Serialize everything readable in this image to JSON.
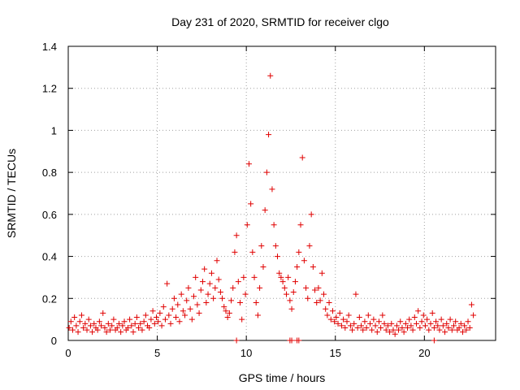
{
  "chart_data": {
    "type": "scatter",
    "title": "Day 231 of 2020, SRMTID for receiver clgo",
    "xlabel": "GPS time / hours",
    "ylabel": "SRMTID / TECUs",
    "xlim": [
      0,
      24
    ],
    "ylim": [
      0,
      1.4
    ],
    "xticks": [
      0,
      5,
      10,
      15,
      20
    ],
    "xtick_labels": [
      "0",
      "5",
      "10",
      "15",
      "20"
    ],
    "yticks": [
      0,
      0.2,
      0.4,
      0.6,
      0.8,
      1.0,
      1.2,
      1.4
    ],
    "ytick_labels": [
      "0",
      "0.2",
      "0.4",
      "0.6",
      "0.8",
      "1",
      "1.2",
      "1.4"
    ],
    "grid": true,
    "marker": "+",
    "color": "#e00000",
    "series": [
      {
        "name": "SRMTID",
        "points": [
          [
            0.05,
            0.06
          ],
          [
            0.15,
            0.09
          ],
          [
            0.25,
            0.05
          ],
          [
            0.35,
            0.11
          ],
          [
            0.45,
            0.07
          ],
          [
            0.55,
            0.04
          ],
          [
            0.65,
            0.09
          ],
          [
            0.75,
            0.12
          ],
          [
            0.85,
            0.06
          ],
          [
            0.95,
            0.08
          ],
          [
            1.05,
            0.05
          ],
          [
            1.15,
            0.1
          ],
          [
            1.25,
            0.07
          ],
          [
            1.35,
            0.04
          ],
          [
            1.45,
            0.08
          ],
          [
            1.55,
            0.06
          ],
          [
            1.65,
            0.05
          ],
          [
            1.75,
            0.09
          ],
          [
            1.85,
            0.07
          ],
          [
            1.95,
            0.13
          ],
          [
            2.05,
            0.06
          ],
          [
            2.15,
            0.04
          ],
          [
            2.25,
            0.08
          ],
          [
            2.35,
            0.05
          ],
          [
            2.45,
            0.07
          ],
          [
            2.55,
            0.1
          ],
          [
            2.65,
            0.05
          ],
          [
            2.75,
            0.06
          ],
          [
            2.85,
            0.08
          ],
          [
            2.95,
            0.04
          ],
          [
            3.05,
            0.07
          ],
          [
            3.15,
            0.09
          ],
          [
            3.25,
            0.05
          ],
          [
            3.35,
            0.06
          ],
          [
            3.45,
            0.1
          ],
          [
            3.55,
            0.07
          ],
          [
            3.65,
            0.04
          ],
          [
            3.75,
            0.08
          ],
          [
            3.85,
            0.11
          ],
          [
            3.95,
            0.06
          ],
          [
            4.05,
            0.08
          ],
          [
            4.15,
            0.05
          ],
          [
            4.25,
            0.09
          ],
          [
            4.35,
            0.12
          ],
          [
            4.45,
            0.07
          ],
          [
            4.55,
            0.06
          ],
          [
            4.65,
            0.1
          ],
          [
            4.75,
            0.14
          ],
          [
            4.85,
            0.08
          ],
          [
            4.95,
            0.11
          ],
          [
            5.05,
            0.09
          ],
          [
            5.15,
            0.13
          ],
          [
            5.25,
            0.07
          ],
          [
            5.35,
            0.16
          ],
          [
            5.45,
            0.1
          ],
          [
            5.55,
            0.27
          ],
          [
            5.65,
            0.12
          ],
          [
            5.75,
            0.08
          ],
          [
            5.85,
            0.15
          ],
          [
            5.95,
            0.2
          ],
          [
            6.05,
            0.11
          ],
          [
            6.15,
            0.17
          ],
          [
            6.25,
            0.09
          ],
          [
            6.35,
            0.22
          ],
          [
            6.45,
            0.14
          ],
          [
            6.55,
            0.12
          ],
          [
            6.65,
            0.19
          ],
          [
            6.75,
            0.25
          ],
          [
            6.85,
            0.15
          ],
          [
            6.95,
            0.1
          ],
          [
            7.05,
            0.21
          ],
          [
            7.15,
            0.3
          ],
          [
            7.25,
            0.17
          ],
          [
            7.35,
            0.13
          ],
          [
            7.45,
            0.24
          ],
          [
            7.55,
            0.28
          ],
          [
            7.65,
            0.34
          ],
          [
            7.75,
            0.18
          ],
          [
            7.85,
            0.22
          ],
          [
            7.95,
            0.27
          ],
          [
            8.05,
            0.32
          ],
          [
            8.15,
            0.2
          ],
          [
            8.25,
            0.25
          ],
          [
            8.35,
            0.38
          ],
          [
            8.45,
            0.29
          ],
          [
            8.55,
            0.23
          ],
          [
            8.65,
            0.2
          ],
          [
            8.75,
            0.16
          ],
          [
            8.85,
            0.14
          ],
          [
            8.95,
            0.11
          ],
          [
            9.05,
            0.13
          ],
          [
            9.15,
            0.19
          ],
          [
            9.25,
            0.25
          ],
          [
            9.35,
            0.42
          ],
          [
            9.45,
            0.5
          ],
          [
            9.55,
            0.28
          ],
          [
            9.65,
            0.18
          ],
          [
            9.75,
            0.1
          ],
          [
            9.85,
            0.3
          ],
          [
            9.95,
            0.22
          ],
          [
            10.05,
            0.55
          ],
          [
            10.15,
            0.84
          ],
          [
            10.25,
            0.65
          ],
          [
            10.35,
            0.42
          ],
          [
            10.45,
            0.3
          ],
          [
            10.55,
            0.18
          ],
          [
            10.65,
            0.12
          ],
          [
            10.75,
            0.25
          ],
          [
            10.85,
            0.45
          ],
          [
            10.95,
            0.35
          ],
          [
            11.05,
            0.62
          ],
          [
            11.15,
            0.8
          ],
          [
            11.25,
            0.98
          ],
          [
            11.35,
            1.26
          ],
          [
            11.45,
            0.72
          ],
          [
            11.55,
            0.55
          ],
          [
            11.65,
            0.45
          ],
          [
            11.75,
            0.4
          ],
          [
            11.85,
            0.32
          ],
          [
            11.95,
            0.3
          ],
          [
            12.05,
            0.28
          ],
          [
            12.15,
            0.25
          ],
          [
            12.25,
            0.22
          ],
          [
            12.35,
            0.3
          ],
          [
            12.45,
            0.19
          ],
          [
            12.55,
            0.15
          ],
          [
            12.65,
            0.23
          ],
          [
            12.75,
            0.28
          ],
          [
            12.85,
            0.35
          ],
          [
            12.95,
            0.42
          ],
          [
            13.05,
            0.55
          ],
          [
            13.15,
            0.87
          ],
          [
            13.25,
            0.38
          ],
          [
            13.35,
            0.25
          ],
          [
            13.45,
            0.2
          ],
          [
            13.55,
            0.45
          ],
          [
            13.65,
            0.6
          ],
          [
            13.75,
            0.35
          ],
          [
            13.85,
            0.24
          ],
          [
            13.95,
            0.18
          ],
          [
            14.05,
            0.25
          ],
          [
            14.15,
            0.19
          ],
          [
            14.25,
            0.32
          ],
          [
            14.35,
            0.22
          ],
          [
            14.45,
            0.15
          ],
          [
            14.55,
            0.12
          ],
          [
            14.65,
            0.18
          ],
          [
            14.75,
            0.1
          ],
          [
            14.85,
            0.14
          ],
          [
            14.95,
            0.09
          ],
          [
            15.05,
            0.11
          ],
          [
            15.15,
            0.08
          ],
          [
            15.25,
            0.13
          ],
          [
            15.35,
            0.07
          ],
          [
            15.45,
            0.1
          ],
          [
            15.55,
            0.06
          ],
          [
            15.65,
            0.09
          ],
          [
            15.75,
            0.12
          ],
          [
            15.85,
            0.07
          ],
          [
            15.95,
            0.05
          ],
          [
            16.05,
            0.08
          ],
          [
            16.15,
            0.22
          ],
          [
            16.25,
            0.06
          ],
          [
            16.35,
            0.11
          ],
          [
            16.45,
            0.07
          ],
          [
            16.55,
            0.05
          ],
          [
            16.65,
            0.09
          ],
          [
            16.75,
            0.06
          ],
          [
            16.85,
            0.12
          ],
          [
            16.95,
            0.08
          ],
          [
            17.05,
            0.05
          ],
          [
            17.15,
            0.1
          ],
          [
            17.25,
            0.07
          ],
          [
            17.35,
            0.04
          ],
          [
            17.45,
            0.09
          ],
          [
            17.55,
            0.06
          ],
          [
            17.65,
            0.12
          ],
          [
            17.75,
            0.08
          ],
          [
            17.85,
            0.05
          ],
          [
            17.95,
            0.07
          ],
          [
            18.05,
            0.04
          ],
          [
            18.15,
            0.08
          ],
          [
            18.25,
            0.05
          ],
          [
            18.35,
            0.03
          ],
          [
            18.45,
            0.07
          ],
          [
            18.55,
            0.05
          ],
          [
            18.65,
            0.09
          ],
          [
            18.75,
            0.06
          ],
          [
            18.85,
            0.04
          ],
          [
            18.95,
            0.08
          ],
          [
            19.05,
            0.06
          ],
          [
            19.15,
            0.1
          ],
          [
            19.25,
            0.07
          ],
          [
            19.35,
            0.05
          ],
          [
            19.45,
            0.11
          ],
          [
            19.55,
            0.08
          ],
          [
            19.65,
            0.14
          ],
          [
            19.75,
            0.06
          ],
          [
            19.85,
            0.09
          ],
          [
            19.95,
            0.12
          ],
          [
            20.05,
            0.07
          ],
          [
            20.15,
            0.1
          ],
          [
            20.25,
            0.05
          ],
          [
            20.35,
            0.08
          ],
          [
            20.45,
            0.13
          ],
          [
            20.55,
            0.06
          ],
          [
            20.65,
            0.09
          ],
          [
            20.75,
            0.07
          ],
          [
            20.85,
            0.05
          ],
          [
            20.95,
            0.1
          ],
          [
            21.05,
            0.07
          ],
          [
            21.15,
            0.04
          ],
          [
            21.25,
            0.08
          ],
          [
            21.35,
            0.06
          ],
          [
            21.45,
            0.1
          ],
          [
            21.55,
            0.05
          ],
          [
            21.65,
            0.07
          ],
          [
            21.75,
            0.09
          ],
          [
            21.85,
            0.05
          ],
          [
            21.95,
            0.06
          ],
          [
            22.05,
            0.08
          ],
          [
            22.15,
            0.04
          ],
          [
            22.25,
            0.07
          ],
          [
            22.35,
            0.05
          ],
          [
            22.45,
            0.09
          ],
          [
            22.55,
            0.06
          ],
          [
            22.65,
            0.17
          ],
          [
            22.75,
            0.12
          ],
          [
            9.45,
            0.0
          ],
          [
            12.45,
            0.0
          ],
          [
            12.55,
            0.0
          ],
          [
            12.85,
            0.0
          ],
          [
            12.95,
            0.0
          ],
          [
            20.55,
            0.0
          ]
        ]
      }
    ]
  }
}
